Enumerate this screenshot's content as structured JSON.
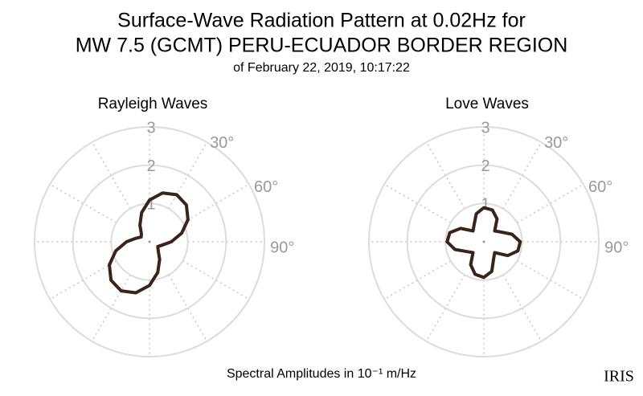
{
  "header": {
    "title": [
      "Surface-Wave Radiation Pattern at 0.02Hz for",
      "MW 7.5 (GCMT) PERU-ECUADOR BORDER REGION"
    ],
    "subtitle": "of February 22, 2019, 10:17:22"
  },
  "chart_data": [
    {
      "type": "polar",
      "title": "Rayleigh Waves",
      "color": "#3a2419",
      "theta": [
        0,
        15,
        30,
        45,
        60,
        75,
        90,
        105,
        120,
        135,
        150,
        165,
        180,
        195,
        210,
        225,
        240,
        255,
        270,
        285,
        300,
        315,
        330,
        345
      ],
      "values": [
        1.09,
        1.32,
        1.42,
        1.36,
        1.16,
        0.87,
        0.57,
        0.34,
        0.25,
        0.32,
        0.53,
        0.83,
        1.14,
        1.38,
        1.48,
        1.42,
        1.21,
        0.91,
        0.6,
        0.36,
        0.25,
        0.3,
        0.5,
        0.79
      ],
      "rlim": [
        0,
        3
      ],
      "rticks": [
        1,
        2,
        3
      ],
      "thetagrid": [
        0,
        30,
        60,
        90,
        120,
        150,
        180,
        210,
        240,
        270,
        300,
        330
      ],
      "thetaticks": [
        {
          "value": 30,
          "label": "30°"
        },
        {
          "value": 60,
          "label": "60°"
        },
        {
          "value": 90,
          "label": "90°"
        }
      ]
    },
    {
      "type": "polar",
      "title": "Love Waves",
      "color": "#3a2419",
      "theta": [
        0,
        15,
        30,
        45,
        60,
        75,
        90,
        105,
        120,
        135,
        150,
        165,
        180,
        195,
        210,
        225,
        240,
        255,
        270,
        285,
        300,
        315,
        330,
        345
      ],
      "values": [
        0.89,
        0.86,
        0.69,
        0.4,
        0.51,
        0.76,
        0.95,
        0.92,
        0.72,
        0.4,
        0.51,
        0.8,
        0.93,
        0.88,
        0.69,
        0.4,
        0.51,
        0.78,
        0.96,
        0.92,
        0.7,
        0.4,
        0.51,
        0.76
      ],
      "rlim": [
        0,
        3
      ],
      "rticks": [
        1,
        2,
        3
      ],
      "thetagrid": [
        0,
        30,
        60,
        90,
        120,
        150,
        180,
        210,
        240,
        270,
        300,
        330
      ],
      "thetaticks": [
        {
          "value": 30,
          "label": "30°"
        },
        {
          "value": 60,
          "label": "60°"
        },
        {
          "value": 90,
          "label": "90°"
        }
      ]
    }
  ],
  "footer": "Spectral Amplitudes in 10⁻¹ m/Hz",
  "logo": "IRIS"
}
